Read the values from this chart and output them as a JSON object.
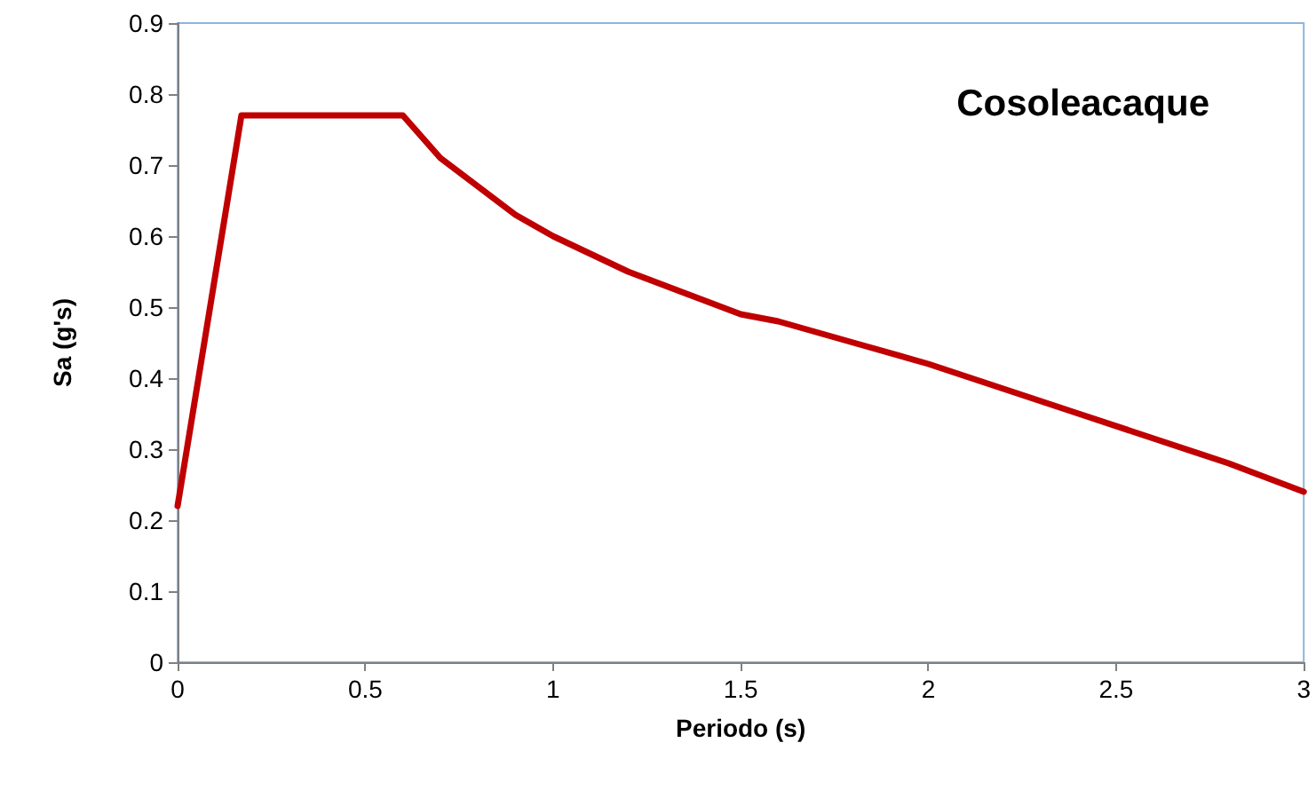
{
  "chart_data": {
    "type": "line",
    "xlabel": "Periodo (s)",
    "ylabel": "Sa (g's)",
    "annotations": [
      "Cosoleacaque"
    ],
    "series": [
      {
        "color": "#c00000",
        "x": [
          0,
          0.17,
          0.6,
          0.7,
          0.8,
          0.9,
          1.0,
          1.2,
          1.4,
          1.5,
          1.6,
          1.8,
          2.0,
          2.2,
          2.4,
          2.6,
          2.8,
          3.0
        ],
        "values": [
          0.22,
          0.77,
          0.77,
          0.71,
          0.67,
          0.63,
          0.6,
          0.55,
          0.51,
          0.49,
          0.48,
          0.45,
          0.42,
          0.385,
          0.35,
          0.315,
          0.28,
          0.24
        ]
      }
    ],
    "xlim": [
      0,
      3
    ],
    "xticks": [
      0,
      0.5,
      1,
      1.5,
      2,
      2.5,
      3
    ],
    "ylim": [
      0,
      0.9
    ],
    "yticks": [
      0,
      0.1,
      0.2,
      0.3,
      0.4,
      0.5,
      0.6,
      0.7,
      0.8,
      0.9
    ],
    "grid": false,
    "marker": "none",
    "line_style": "solid"
  }
}
